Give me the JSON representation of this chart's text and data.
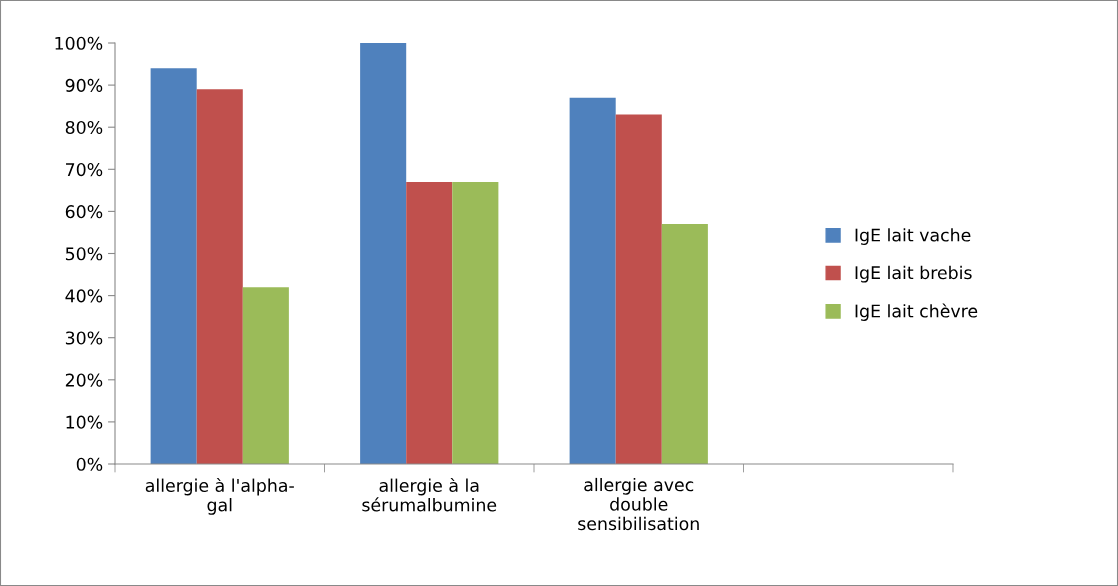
{
  "chart_data": {
    "type": "bar",
    "categories": [
      "allergie à l'alpha-\ngal",
      "allergie à la\nsérumalbumine",
      "allergie avec\ndouble\nsensibilisation",
      null
    ],
    "series": [
      {
        "name": "IgE lait vache",
        "color": "#4f81bd",
        "values": [
          94,
          100,
          87,
          null
        ]
      },
      {
        "name": "IgE lait brebis",
        "color": "#c0504d",
        "values": [
          89,
          67,
          83,
          null
        ]
      },
      {
        "name": "IgE lait chèvre",
        "color": "#9bbb59",
        "values": [
          42,
          67,
          57,
          null
        ]
      }
    ],
    "ylim": [
      0,
      100
    ],
    "yticks": [
      {
        "value": 0,
        "label": "0%"
      },
      {
        "value": 10,
        "label": "10%"
      },
      {
        "value": 20,
        "label": "20%"
      },
      {
        "value": 30,
        "label": "30%"
      },
      {
        "value": 40,
        "label": "40%"
      },
      {
        "value": 50,
        "label": "50%"
      },
      {
        "value": 60,
        "label": "60%"
      },
      {
        "value": 70,
        "label": "70%"
      },
      {
        "value": 80,
        "label": "80%"
      },
      {
        "value": 90,
        "label": "90%"
      },
      {
        "value": 100,
        "label": "100%"
      }
    ],
    "grid": false,
    "legend": "right"
  }
}
